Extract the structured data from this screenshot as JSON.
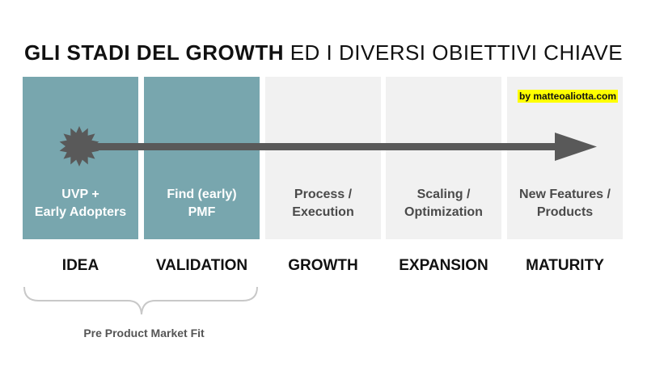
{
  "title": {
    "bold": "GLI STADI DEL GROWTH",
    "light": "ED I DIVERSI OBIETTIVI CHIAVE"
  },
  "watermark": "by matteoaliotta.com",
  "columns": [
    {
      "line1": "UVP +",
      "line2": "Early Adopters",
      "stage": "IDEA",
      "fill": "#78a6ae"
    },
    {
      "line1": "Find (early)",
      "line2": "PMF",
      "stage": "VALIDATION",
      "fill": "#78a6ae"
    },
    {
      "line1": "Process /",
      "line2": "Execution",
      "stage": "GROWTH",
      "fill": "#f1f1f1"
    },
    {
      "line1": "Scaling /",
      "line2": "Optimization",
      "stage": "EXPANSION",
      "fill": "#f1f1f1"
    },
    {
      "line1": "New Features /",
      "line2": "Products",
      "stage": "MATURITY",
      "fill": "#f1f1f1"
    }
  ],
  "brace_label": "Pre Product Market Fit",
  "colors": {
    "arrow": "#595959",
    "starburst": "#595959",
    "brace": "#c8c8c8"
  }
}
